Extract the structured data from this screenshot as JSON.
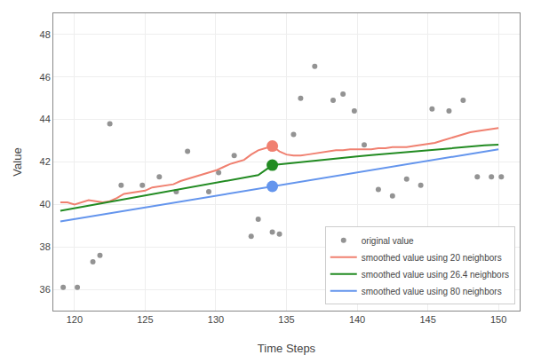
{
  "chart_data": {
    "type": "line",
    "xlabel": "Time Steps",
    "ylabel": "Value",
    "xlim": [
      118.5,
      151.5
    ],
    "ylim": [
      35.0,
      49.0
    ],
    "xticks": [
      120,
      125,
      130,
      135,
      140,
      145,
      150
    ],
    "yticks": [
      36,
      38,
      40,
      42,
      44,
      46,
      48
    ],
    "grid": true,
    "legend": "lower right",
    "series": [
      {
        "name": "original value",
        "type": "scatter",
        "marker": "circle",
        "color": "#808080",
        "x": [
          119.2,
          120.2,
          121.3,
          121.8,
          122.5,
          123.3,
          124.8,
          126.0,
          127.2,
          128.0,
          129.5,
          130.2,
          131.3,
          132.5,
          133.0,
          134.0,
          134.5,
          135.5,
          136.0,
          137.0,
          138.3,
          139.0,
          139.8,
          140.5,
          141.5,
          142.5,
          143.5,
          144.5,
          145.3,
          146.5,
          147.5,
          148.5,
          149.5,
          150.2
        ],
        "values": [
          36.1,
          36.1,
          37.3,
          37.6,
          43.8,
          40.9,
          40.9,
          41.3,
          40.6,
          42.5,
          40.6,
          41.5,
          42.3,
          38.5,
          39.3,
          38.7,
          38.6,
          43.3,
          45.0,
          46.5,
          44.9,
          45.2,
          44.4,
          42.8,
          40.7,
          40.4,
          41.2,
          40.9,
          44.5,
          44.4,
          44.9,
          41.3,
          41.3,
          41.3
        ]
      },
      {
        "name": "smoothed value using 20 neighbors",
        "type": "line",
        "color": "#f08070",
        "x": [
          119,
          119.5,
          120,
          120.5,
          121,
          121.5,
          122,
          122.5,
          123,
          123.5,
          124,
          124.5,
          125,
          125.5,
          126,
          126.5,
          127,
          127.5,
          128,
          128.5,
          129,
          129.5,
          130,
          130.5,
          131,
          131.5,
          132,
          132.5,
          133,
          133.5,
          134,
          134.5,
          135,
          135.5,
          136,
          136.5,
          137,
          137.5,
          138,
          138.5,
          139,
          139.5,
          140,
          140.5,
          141,
          141.5,
          142,
          142.5,
          143,
          143.5,
          144,
          144.5,
          145,
          145.5,
          146,
          146.5,
          147,
          147.5,
          148,
          148.5,
          149,
          149.5,
          150
        ],
        "values": [
          40.1,
          40.1,
          40.0,
          40.1,
          40.2,
          40.15,
          40.1,
          40.15,
          40.3,
          40.5,
          40.55,
          40.6,
          40.65,
          40.8,
          40.85,
          40.9,
          40.95,
          41.1,
          41.2,
          41.3,
          41.4,
          41.5,
          41.6,
          41.75,
          41.9,
          42.0,
          42.1,
          42.35,
          42.55,
          42.65,
          42.75,
          42.5,
          42.35,
          42.3,
          42.3,
          42.35,
          42.4,
          42.45,
          42.5,
          42.55,
          42.55,
          42.6,
          42.6,
          42.6,
          42.6,
          42.65,
          42.65,
          42.7,
          42.7,
          42.7,
          42.75,
          42.8,
          42.85,
          42.9,
          43.0,
          43.1,
          43.2,
          43.3,
          43.4,
          43.45,
          43.5,
          43.55,
          43.6
        ]
      },
      {
        "name": "smoothed value using 26.4 neighbors",
        "type": "line",
        "color": "#228B22",
        "x": [
          119,
          120,
          121,
          122,
          123,
          124,
          125,
          126,
          127,
          128,
          129,
          130,
          131,
          132,
          133,
          134,
          135,
          136,
          137,
          138,
          139,
          140,
          141,
          142,
          143,
          144,
          145,
          146,
          147,
          148,
          149,
          150
        ],
        "values": [
          39.7,
          39.82,
          39.94,
          40.06,
          40.18,
          40.3,
          40.42,
          40.54,
          40.66,
          40.78,
          40.9,
          41.02,
          41.14,
          41.26,
          41.38,
          41.85,
          41.92,
          42.0,
          42.08,
          42.14,
          42.2,
          42.26,
          42.32,
          42.38,
          42.44,
          42.5,
          42.56,
          42.62,
          42.68,
          42.74,
          42.78,
          42.82
        ]
      },
      {
        "name": "smoothed value using 80 neighbors",
        "type": "line",
        "color": "#6495ED",
        "x": [
          119,
          120,
          121,
          122,
          123,
          124,
          125,
          126,
          127,
          128,
          129,
          130,
          131,
          132,
          133,
          134,
          135,
          136,
          137,
          138,
          139,
          140,
          141,
          142,
          143,
          144,
          145,
          146,
          147,
          148,
          149,
          150
        ],
        "values": [
          39.2,
          39.31,
          39.42,
          39.53,
          39.64,
          39.75,
          39.86,
          39.97,
          40.08,
          40.19,
          40.3,
          40.41,
          40.52,
          40.63,
          40.74,
          40.85,
          40.96,
          41.07,
          41.18,
          41.29,
          41.4,
          41.51,
          41.62,
          41.73,
          41.84,
          41.95,
          42.06,
          42.17,
          42.28,
          42.39,
          42.5,
          42.6
        ]
      },
      {
        "type": "scatter",
        "marker": "circle",
        "colors": [
          "#f08070",
          "#228B22",
          "#6495ED"
        ],
        "x": [
          134,
          134,
          134
        ],
        "values": [
          42.75,
          41.85,
          40.85
        ]
      }
    ]
  }
}
